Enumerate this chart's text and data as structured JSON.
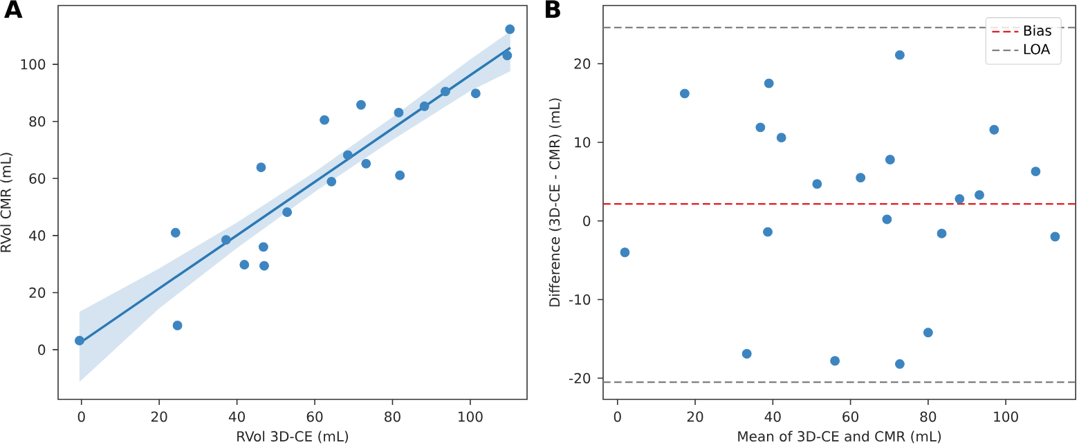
{
  "chart_data": [
    {
      "type": "scatter",
      "title": "A",
      "xlabel": "RVol 3D-CE (mL)",
      "ylabel": "RVol CMR (mL)",
      "xlim": [
        -6,
        114.6
      ],
      "ylim": [
        -17.4,
        120.6
      ],
      "xticks": [
        0,
        20,
        40,
        60,
        80,
        100
      ],
      "yticks": [
        0,
        20,
        40,
        60,
        80,
        100
      ],
      "series": [
        {
          "type": "line",
          "marker": "none",
          "color": "#2b79b6",
          "x": [
            -0.5,
            20,
            40,
            60,
            80,
            100,
            110.3
          ],
          "values": [
            2.3,
            21.5,
            40.1,
            58.8,
            77.5,
            96.2,
            105.8
          ],
          "lower": [
            -11.3,
            14.5,
            35.6,
            55.3,
            73.5,
            90.7,
            97.6
          ],
          "upper": [
            13.3,
            28.5,
            44.6,
            62.3,
            81.5,
            101.7,
            111.6
          ]
        },
        {
          "marker": "circle",
          "color": "#3d85c0",
          "x": [
            -0.5,
            24.2,
            24.7,
            37.2,
            41.9,
            46.2,
            46.8,
            47.0,
            52.9,
            62.5,
            64.3,
            68.5,
            71.9,
            73.2,
            81.6,
            81.9,
            88.2,
            93.6,
            101.4,
            109.5,
            110.2
          ],
          "values": [
            3.2,
            41.0,
            8.5,
            38.5,
            29.8,
            63.9,
            36.0,
            29.4,
            48.2,
            80.5,
            58.9,
            68.2,
            85.8,
            65.2,
            83.1,
            61.1,
            85.3,
            90.5,
            89.8,
            103.1,
            112.3
          ]
        }
      ]
    },
    {
      "type": "scatter",
      "title": "B",
      "xlabel": "Mean of 3D-CE and CMR (mL)",
      "ylabel": "Difference (3D-CE - CMR) (mL)",
      "xlim": [
        -3.7,
        118
      ],
      "ylim": [
        -22.7,
        27.4
      ],
      "xticks": [
        0,
        20,
        40,
        60,
        80,
        100
      ],
      "yticks": [
        -20,
        -10,
        0,
        10,
        20
      ],
      "legend": "top right",
      "ref_lines": [
        {
          "axis": "y",
          "value": 2.16,
          "label": "Bias",
          "color": "#e41a1c",
          "line_style": "dashed"
        },
        {
          "axis": "y",
          "value": 24.6,
          "label": "LOA",
          "color": "#808080",
          "line_style": "dashed"
        },
        {
          "axis": "y",
          "value": -20.5,
          "color": "#808080",
          "line_style": "dashed"
        }
      ],
      "series": [
        {
          "marker": "circle",
          "color": "#3d85c0",
          "x": [
            1.9,
            17.3,
            33.3,
            36.8,
            39.0,
            38.7,
            42.2,
            51.4,
            56.0,
            62.6,
            69.4,
            70.2,
            72.7,
            72.7,
            80.0,
            83.5,
            88.1,
            93.2,
            97.0,
            107.7,
            112.7
          ],
          "values": [
            -4.0,
            16.2,
            -16.9,
            11.9,
            17.5,
            -1.4,
            10.6,
            4.7,
            -17.8,
            5.5,
            0.2,
            7.8,
            21.1,
            -18.2,
            -14.2,
            -1.6,
            2.8,
            3.3,
            11.6,
            6.3,
            -2.0
          ]
        }
      ]
    }
  ]
}
